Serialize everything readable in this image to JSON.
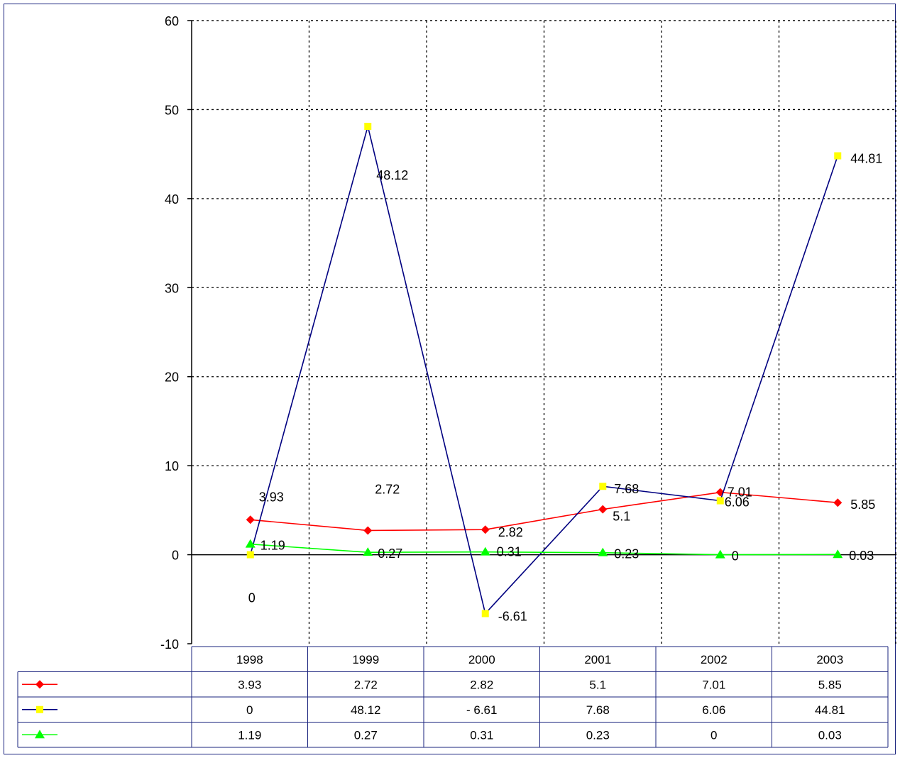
{
  "chart_data": {
    "type": "line",
    "title": "",
    "xlabel": "",
    "ylabel": "",
    "categories": [
      "1998",
      "1999",
      "2000",
      "2001",
      "2002",
      "2003"
    ],
    "ylim": [
      -10,
      60
    ],
    "yticks": [
      -10,
      0,
      10,
      20,
      30,
      40,
      50,
      60
    ],
    "grid": true,
    "legend": "data-table-left",
    "series": [
      {
        "values": [
          3.93,
          2.72,
          2.82,
          5.1,
          7.01,
          5.85
        ],
        "table_values": [
          "3.93",
          "2.72",
          "2.82",
          "5.1",
          "7.01",
          "5.85"
        ],
        "line_color": "#ff0000",
        "marker_color": "#ff0000",
        "marker": "diamond"
      },
      {
        "values": [
          0,
          48.12,
          -6.61,
          7.68,
          6.06,
          44.81
        ],
        "table_values": [
          "0",
          "48.12",
          "- 6.61",
          "7.68",
          "6.06",
          "44.81"
        ],
        "line_color": "#000080",
        "marker_color": "#ffff00",
        "marker": "square"
      },
      {
        "values": [
          1.19,
          0.27,
          0.31,
          0.23,
          0,
          0.03
        ],
        "table_values": [
          "1.19",
          "0.27",
          "0.31",
          "0.23",
          "0",
          "0.03"
        ],
        "line_color": "#00ff00",
        "marker_color": "#00ff00",
        "marker": "triangle"
      }
    ]
  }
}
